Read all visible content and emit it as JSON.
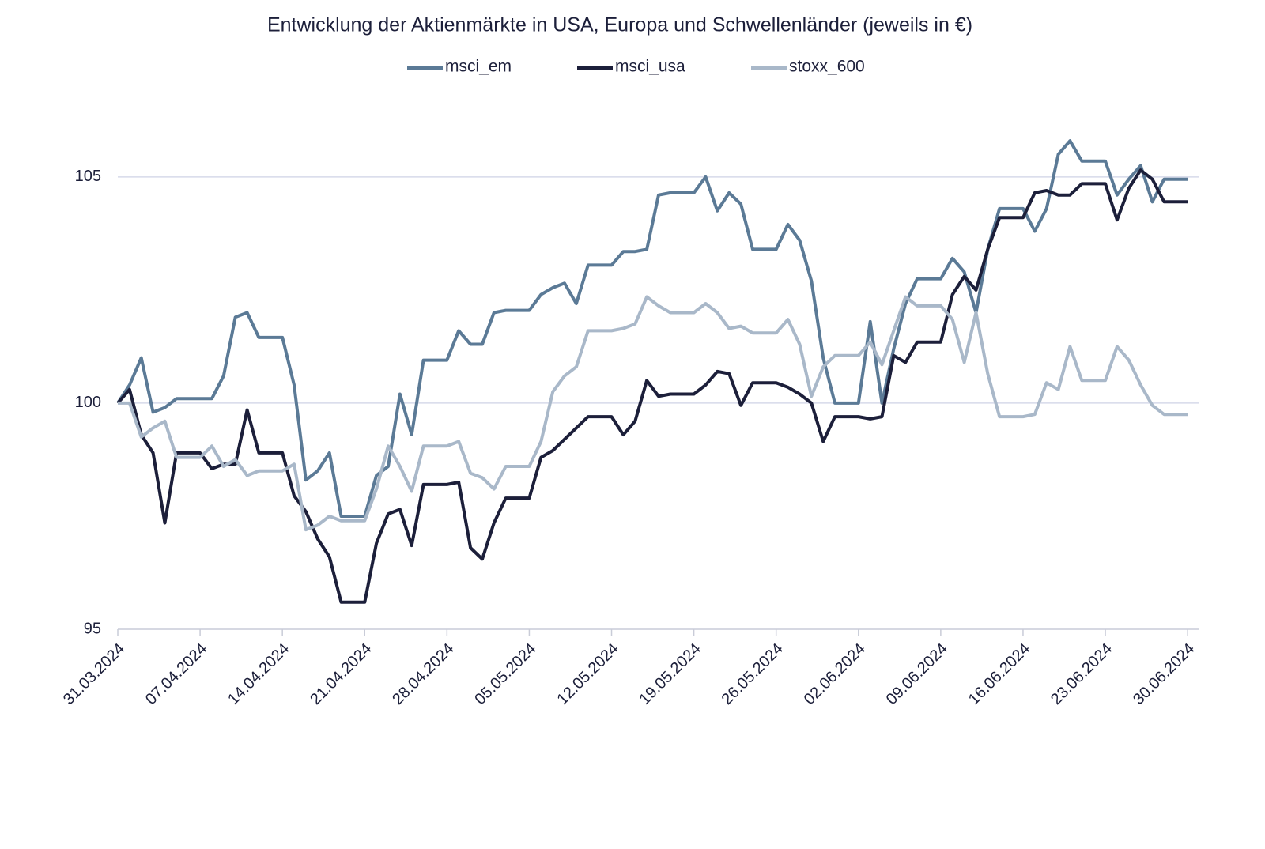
{
  "chart_data": {
    "type": "line",
    "title": "Entwicklung der Aktienmärkte in USA, Europa und Schwellenländer (jeweils in €)",
    "x": [
      "31.03.2024",
      "01.04.2024",
      "02.04.2024",
      "03.04.2024",
      "04.04.2024",
      "05.04.2024",
      "06.04.2024",
      "07.04.2024",
      "08.04.2024",
      "09.04.2024",
      "10.04.2024",
      "11.04.2024",
      "12.04.2024",
      "13.04.2024",
      "14.04.2024",
      "15.04.2024",
      "16.04.2024",
      "17.04.2024",
      "18.04.2024",
      "19.04.2024",
      "20.04.2024",
      "21.04.2024",
      "22.04.2024",
      "23.04.2024",
      "24.04.2024",
      "25.04.2024",
      "26.04.2024",
      "27.04.2024",
      "28.04.2024",
      "29.04.2024",
      "30.04.2024",
      "01.05.2024",
      "02.05.2024",
      "03.05.2024",
      "04.05.2024",
      "05.05.2024",
      "06.05.2024",
      "07.05.2024",
      "08.05.2024",
      "09.05.2024",
      "10.05.2024",
      "11.05.2024",
      "12.05.2024",
      "13.05.2024",
      "14.05.2024",
      "15.05.2024",
      "16.05.2024",
      "17.05.2024",
      "18.05.2024",
      "19.05.2024",
      "20.05.2024",
      "21.05.2024",
      "22.05.2024",
      "23.05.2024",
      "24.05.2024",
      "25.05.2024",
      "26.05.2024",
      "27.05.2024",
      "28.05.2024",
      "29.05.2024",
      "30.05.2024",
      "31.05.2024",
      "01.06.2024",
      "02.06.2024",
      "03.06.2024",
      "04.06.2024",
      "05.06.2024",
      "06.06.2024",
      "07.06.2024",
      "08.06.2024",
      "09.06.2024",
      "10.06.2024",
      "11.06.2024",
      "12.06.2024",
      "13.06.2024",
      "14.06.2024",
      "15.06.2024",
      "16.06.2024",
      "17.06.2024",
      "18.06.2024",
      "19.06.2024",
      "20.06.2024",
      "21.06.2024",
      "22.06.2024",
      "23.06.2024",
      "24.06.2024",
      "25.06.2024",
      "26.06.2024",
      "27.06.2024",
      "28.06.2024",
      "29.06.2024",
      "30.06.2024"
    ],
    "series": [
      {
        "name": "msci_em",
        "color": "#5b7a96",
        "values": [
          100.0,
          100.4,
          101.0,
          99.8,
          99.9,
          100.1,
          100.1,
          100.1,
          100.1,
          100.6,
          101.9,
          102.0,
          101.45,
          101.45,
          101.45,
          100.4,
          98.3,
          98.5,
          98.9,
          97.5,
          97.5,
          97.5,
          98.4,
          98.6,
          100.2,
          99.3,
          100.95,
          100.95,
          100.95,
          101.6,
          101.3,
          101.3,
          102.0,
          102.05,
          102.05,
          102.05,
          102.4,
          102.55,
          102.65,
          102.2,
          103.05,
          103.05,
          103.05,
          103.35,
          103.35,
          103.4,
          104.6,
          104.65,
          104.65,
          104.65,
          105.0,
          104.25,
          104.65,
          104.4,
          103.4,
          103.4,
          103.4,
          103.95,
          103.6,
          102.7,
          101.0,
          100.0,
          100.0,
          100.0,
          101.8,
          100.0,
          101.2,
          102.2,
          102.75,
          102.75,
          102.75,
          103.2,
          102.9,
          102.0,
          103.4,
          104.3,
          104.3,
          104.3,
          103.8,
          104.3,
          105.5,
          105.8,
          105.35,
          105.35,
          105.35,
          104.6,
          104.95,
          105.25,
          104.45,
          104.95,
          104.95,
          104.95
        ]
      },
      {
        "name": "msci_usa",
        "color": "#1c1f3a",
        "values": [
          100.0,
          100.3,
          99.3,
          98.9,
          97.35,
          98.9,
          98.9,
          98.9,
          98.55,
          98.65,
          98.65,
          99.85,
          98.9,
          98.9,
          98.9,
          97.95,
          97.6,
          97.0,
          96.6,
          95.6,
          95.6,
          95.6,
          96.9,
          97.55,
          97.65,
          96.85,
          98.2,
          98.2,
          98.2,
          98.25,
          96.8,
          96.55,
          97.35,
          97.9,
          97.9,
          97.9,
          98.8,
          98.95,
          99.2,
          99.45,
          99.7,
          99.7,
          99.7,
          99.3,
          99.6,
          100.5,
          100.15,
          100.2,
          100.2,
          100.2,
          100.4,
          100.7,
          100.65,
          99.95,
          100.45,
          100.45,
          100.45,
          100.35,
          100.2,
          100.0,
          99.15,
          99.7,
          99.7,
          99.7,
          99.65,
          99.7,
          101.05,
          100.9,
          101.35,
          101.35,
          101.35,
          102.4,
          102.8,
          102.5,
          103.4,
          104.1,
          104.1,
          104.1,
          104.65,
          104.7,
          104.6,
          104.6,
          104.85,
          104.85,
          104.85,
          104.05,
          104.75,
          105.15,
          104.95,
          104.45,
          104.45,
          104.45
        ]
      },
      {
        "name": "stoxx_600",
        "color": "#a9b8c9",
        "values": [
          100.0,
          100.0,
          99.25,
          99.45,
          99.6,
          98.8,
          98.8,
          98.8,
          99.05,
          98.6,
          98.75,
          98.4,
          98.5,
          98.5,
          98.5,
          98.65,
          97.2,
          97.3,
          97.5,
          97.4,
          97.4,
          97.4,
          98.1,
          99.05,
          98.6,
          98.05,
          99.05,
          99.05,
          99.05,
          99.15,
          98.45,
          98.35,
          98.1,
          98.6,
          98.6,
          98.6,
          99.15,
          100.25,
          100.6,
          100.8,
          101.6,
          101.6,
          101.6,
          101.65,
          101.75,
          102.35,
          102.15,
          102.0,
          102.0,
          102.0,
          102.2,
          102.0,
          101.65,
          101.7,
          101.55,
          101.55,
          101.55,
          101.85,
          101.3,
          100.15,
          100.8,
          101.05,
          101.05,
          101.05,
          101.35,
          100.85,
          101.6,
          102.35,
          102.15,
          102.15,
          102.15,
          101.85,
          100.9,
          102.0,
          100.65,
          99.7,
          99.7,
          99.7,
          99.75,
          100.45,
          100.3,
          101.25,
          100.5,
          100.5,
          100.5,
          101.25,
          100.95,
          100.4,
          99.95,
          99.75,
          99.75,
          99.75
        ]
      }
    ],
    "xlim": [
      "31.03.2024",
      "01.07.2024"
    ],
    "xticks": [
      "31.03.2024",
      "07.04.2024",
      "14.04.2024",
      "21.04.2024",
      "28.04.2024",
      "05.05.2024",
      "12.05.2024",
      "19.05.2024",
      "26.05.2024",
      "02.06.2024",
      "09.06.2024",
      "16.06.2024",
      "23.06.2024",
      "30.06.2024"
    ],
    "ylim": [
      95,
      106.5
    ],
    "yticks": [
      95,
      100,
      105
    ],
    "grid": true,
    "legend": "top"
  }
}
